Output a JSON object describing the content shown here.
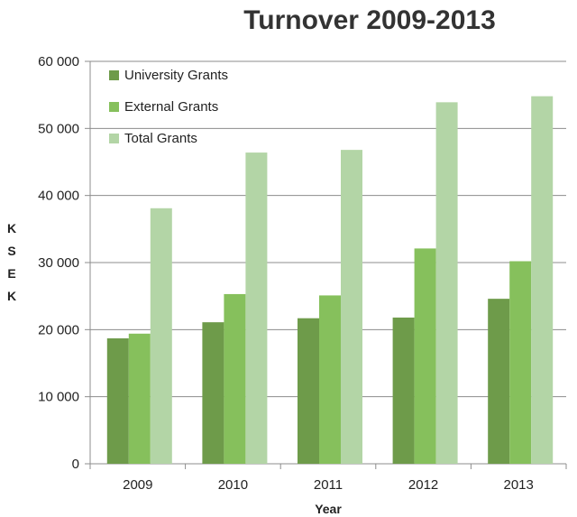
{
  "chart_data": {
    "type": "bar",
    "title": "Turnover 2009-2013",
    "xlabel": "Year",
    "ylabel": "K\nS\nE\nK",
    "categories": [
      "2009",
      "2010",
      "2011",
      "2012",
      "2013"
    ],
    "series": [
      {
        "name": "University Grants",
        "color": "#6e9b4a",
        "values": [
          18700,
          21100,
          21700,
          21800,
          24600
        ]
      },
      {
        "name": "External Grants",
        "color": "#86c05c",
        "values": [
          19400,
          25300,
          25100,
          32100,
          30200
        ]
      },
      {
        "name": "Total Grants",
        "color": "#b3d5a6",
        "values": [
          38100,
          46400,
          46800,
          53900,
          54800
        ]
      }
    ],
    "ylim": [
      0,
      60000
    ],
    "yticks": [
      0,
      10000,
      20000,
      30000,
      40000,
      50000,
      60000
    ],
    "ytick_labels": [
      "0",
      "10 000",
      "20 000",
      "30 000",
      "40 000",
      "50 000",
      "60 000"
    ],
    "grid": true,
    "legend_position": "top-left"
  }
}
